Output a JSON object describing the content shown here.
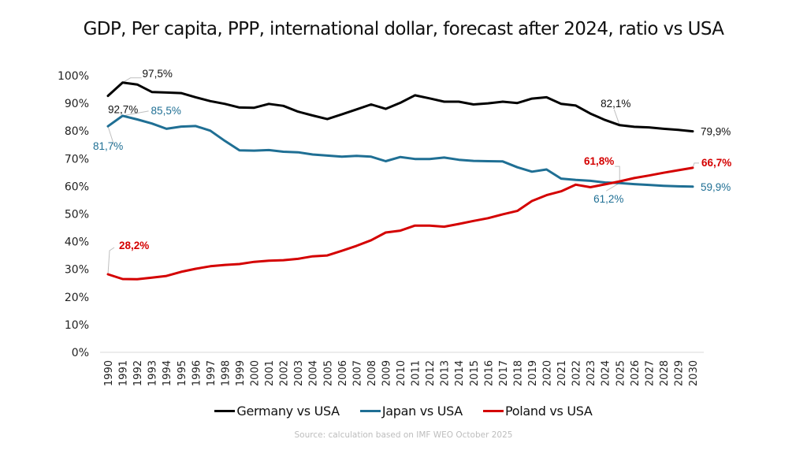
{
  "chart_data": {
    "type": "line",
    "title": "GDP, Per capita, PPP, international dollar, forecast after 2024, ratio vs USA",
    "xlabel": "",
    "ylabel": "",
    "ylim": [
      0,
      100
    ],
    "y_ticks": [
      "0%",
      "10%",
      "20%",
      "30%",
      "40%",
      "50%",
      "60%",
      "70%",
      "80%",
      "90%",
      "100%"
    ],
    "grid": false,
    "legend_position": "bottom",
    "x": [
      "1990",
      "1991",
      "1992",
      "1993",
      "1994",
      "1995",
      "1996",
      "1997",
      "1998",
      "1999",
      "2000",
      "2001",
      "2002",
      "2003",
      "2004",
      "2005",
      "2006",
      "2007",
      "2008",
      "2009",
      "2010",
      "2011",
      "2012",
      "2013",
      "2014",
      "2015",
      "2016",
      "2017",
      "2018",
      "2019",
      "2020",
      "2021",
      "2022",
      "2023",
      "2024",
      "2025",
      "2026",
      "2027",
      "2028",
      "2029",
      "2030"
    ],
    "series": [
      {
        "name": "Germany vs USA",
        "color": "#000000",
        "values": [
          92.7,
          97.5,
          96.8,
          94.1,
          93.9,
          93.7,
          92.2,
          90.8,
          89.8,
          88.5,
          88.4,
          89.8,
          89.1,
          87.0,
          85.6,
          84.3,
          86.0,
          87.8,
          89.6,
          88.0,
          90.2,
          92.9,
          91.8,
          90.6,
          90.6,
          89.6,
          90.0,
          90.6,
          90.1,
          91.7,
          92.2,
          89.8,
          89.2,
          86.3,
          84.0,
          82.1,
          81.5,
          81.3,
          80.8,
          80.4,
          79.9
        ],
        "annotations": [
          {
            "x": "1990",
            "label": "92,7%"
          },
          {
            "x": "1991",
            "label": "97,5%"
          },
          {
            "x": "2025",
            "label": "82,1%"
          },
          {
            "x": "2030",
            "label": "79,9%"
          }
        ]
      },
      {
        "name": "Japan vs USA",
        "color": "#1f6f94",
        "values": [
          81.7,
          85.5,
          84.2,
          82.7,
          80.8,
          81.6,
          81.8,
          80.1,
          76.4,
          73.0,
          72.9,
          73.1,
          72.5,
          72.3,
          71.5,
          71.1,
          70.7,
          71.0,
          70.7,
          69.1,
          70.6,
          69.9,
          69.9,
          70.4,
          69.6,
          69.2,
          69.1,
          69.0,
          66.9,
          65.3,
          66.1,
          62.8,
          62.3,
          62.0,
          61.4,
          61.2,
          60.8,
          60.5,
          60.2,
          60.0,
          59.9
        ],
        "annotations": [
          {
            "x": "1990",
            "label": "81,7%"
          },
          {
            "x": "1991",
            "label": "85,5%"
          },
          {
            "x": "2025",
            "label": "61,2%"
          },
          {
            "x": "2030",
            "label": "59,9%"
          }
        ]
      },
      {
        "name": "Poland vs USA",
        "color": "#d40000",
        "values": [
          28.2,
          26.5,
          26.4,
          27.0,
          27.6,
          29.1,
          30.2,
          31.1,
          31.6,
          31.9,
          32.7,
          33.1,
          33.3,
          33.8,
          34.7,
          35.0,
          36.7,
          38.5,
          40.5,
          43.3,
          44.0,
          45.8,
          45.8,
          45.4,
          46.4,
          47.5,
          48.5,
          49.9,
          51.1,
          54.7,
          56.8,
          58.2,
          60.6,
          59.7,
          60.7,
          61.8,
          63.0,
          63.9,
          64.9,
          65.8,
          66.7
        ],
        "annotations": [
          {
            "x": "1990",
            "label": "28,2%"
          },
          {
            "x": "2025",
            "label": "61,8%"
          },
          {
            "x": "2030",
            "label": "66,7%"
          }
        ]
      }
    ]
  },
  "source_note": "Source: calculation based on IMF WEO October 2025"
}
